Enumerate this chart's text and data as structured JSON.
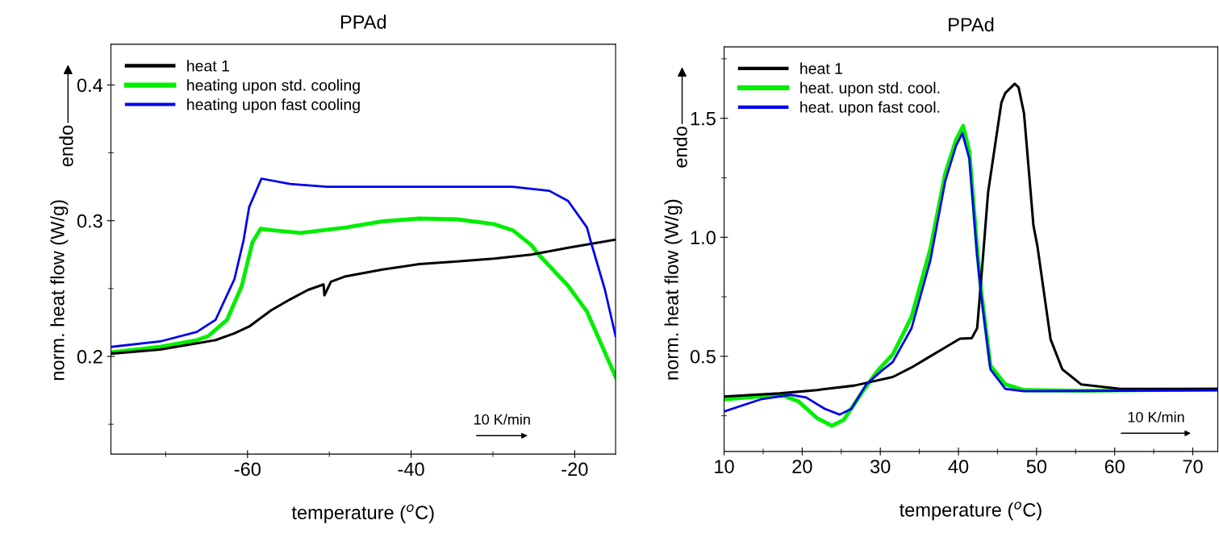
{
  "chart_data": [
    {
      "type": "line",
      "title": "PPAd",
      "xlabel": "temperature ($^{o}$C)",
      "ylabel": "norm. heat flow (W/g)",
      "annotations": [
        "endo",
        "10 K/min"
      ],
      "xlim": [
        -76.7,
        -15
      ],
      "xticks": [
        {
          "value": -70,
          "label": null
        },
        -60,
        {
          "value": -50,
          "label": null
        },
        -40,
        {
          "value": -30,
          "label": null
        },
        -20
      ],
      "ylim": [
        0.128,
        0.43
      ],
      "yticks": [
        {
          "value": 0.15,
          "label": null
        },
        0.2,
        {
          "value": 0.25,
          "label": null
        },
        0.3,
        {
          "value": 0.35,
          "label": null
        },
        0.4
      ],
      "grid": false,
      "legend": "top left",
      "line_style": "solid",
      "marker": "none",
      "series": [
        {
          "name": "heat 1",
          "color": "#000000",
          "x": [
            -76.7,
            -70.7,
            -63.9,
            -61.6,
            -59.8,
            -57.1,
            -54.8,
            -52.6,
            -50.7,
            -50.6,
            -49.8,
            -48,
            -43.5,
            -39,
            -34.4,
            -29.9,
            -25.3,
            -20.8,
            -15
          ],
          "values": [
            0.202,
            0.205,
            0.212,
            0.217,
            0.222,
            0.234,
            0.242,
            0.249,
            0.253,
            0.245,
            0.255,
            0.259,
            0.264,
            0.268,
            0.27,
            0.272,
            0.275,
            0.28,
            0.286
          ]
        },
        {
          "name": "heating upon std. cooling",
          "color": "#00ee00",
          "x": [
            -76.7,
            -70.7,
            -66.2,
            -64.8,
            -62.5,
            -60.7,
            -59.4,
            -58.4,
            -57.1,
            -53.5,
            -48,
            -43.5,
            -39,
            -34.4,
            -29.9,
            -27.6,
            -25.3,
            -24.4,
            -20.8,
            -18.5,
            -15
          ],
          "values": [
            0.203,
            0.207,
            0.212,
            0.215,
            0.227,
            0.252,
            0.284,
            0.294,
            0.293,
            0.291,
            0.295,
            0.2995,
            0.3016,
            0.301,
            0.2975,
            0.293,
            0.282,
            0.275,
            0.252,
            0.233,
            0.185
          ]
        },
        {
          "name": "heating upon fast cooling",
          "color": "#0000ee",
          "x": [
            -76.7,
            -70.7,
            -66.2,
            -63.9,
            -61.6,
            -60.5,
            -59.8,
            -58.3,
            -54.8,
            -50.3,
            -39,
            -27.6,
            -23.1,
            -20.8,
            -18.5,
            -18.1,
            -16.3,
            -15
          ],
          "values": [
            0.207,
            0.211,
            0.218,
            0.227,
            0.257,
            0.285,
            0.31,
            0.331,
            0.327,
            0.325,
            0.325,
            0.325,
            0.322,
            0.3145,
            0.295,
            0.286,
            0.249,
            0.215
          ]
        }
      ]
    },
    {
      "type": "line",
      "title": "PPAd",
      "xlabel": "temperature ($^{o}$C)",
      "ylabel": "norm. heat flow (W/g)",
      "annotations": [
        "endo",
        "10 K/min"
      ],
      "xlim": [
        10,
        73.2
      ],
      "xticks": [
        10,
        {
          "value": 15,
          "label": null
        },
        20,
        {
          "value": 25,
          "label": null
        },
        30,
        {
          "value": 35,
          "label": null
        },
        40,
        {
          "value": 45,
          "label": null
        },
        50,
        {
          "value": 55,
          "label": null
        },
        60,
        {
          "value": 65,
          "label": null
        },
        70
      ],
      "ylim": [
        0.1,
        1.8
      ],
      "yticks": [
        {
          "value": 0.25,
          "label": null
        },
        0.5,
        {
          "value": 0.75,
          "label": null
        },
        {
          "value": 1.0,
          "label": "1.0"
        },
        {
          "value": 1.25,
          "label": null
        },
        1.5,
        {
          "value": 1.75,
          "label": null
        }
      ],
      "grid": false,
      "legend": "top left",
      "line_style": "solid",
      "marker": "none",
      "series": [
        {
          "name": "heat 1",
          "color": "#000000",
          "x": [
            10,
            17.1,
            21.9,
            26.7,
            31.6,
            34,
            36.4,
            38.8,
            40.2,
            41.7,
            42.4,
            43.1,
            43.8,
            45.5,
            46,
            47.2,
            47.7,
            48.4,
            49.6,
            50.1,
            51.8,
            53.3,
            55.7,
            60.5,
            73.2
          ],
          "values": [
            0.331,
            0.344,
            0.358,
            0.377,
            0.413,
            0.453,
            0.5,
            0.547,
            0.574,
            0.576,
            0.618,
            0.9,
            1.19,
            1.566,
            1.606,
            1.645,
            1.63,
            1.52,
            1.05,
            0.965,
            0.571,
            0.445,
            0.382,
            0.364,
            0.363
          ]
        },
        {
          "name": "heat. upon std. cool.",
          "color": "#00ee00",
          "x": [
            10,
            14.7,
            17.6,
            19.5,
            21.9,
            23.8,
            25.3,
            27.7,
            29.6,
            31.6,
            34,
            36.4,
            38.3,
            39.7,
            40.6,
            41.4,
            42.4,
            42.9,
            44.1,
            46,
            48.4,
            55.7,
            73.2
          ],
          "values": [
            0.319,
            0.331,
            0.334,
            0.311,
            0.24,
            0.208,
            0.232,
            0.35,
            0.437,
            0.508,
            0.666,
            0.95,
            1.267,
            1.41,
            1.468,
            1.36,
            0.95,
            0.776,
            0.46,
            0.382,
            0.358,
            0.355,
            0.361
          ]
        },
        {
          "name": "heat. upon fast cool.",
          "color": "#0000ee",
          "x": [
            10,
            14.7,
            18.5,
            20.5,
            22.9,
            24.8,
            26.3,
            28.2,
            30.1,
            31.6,
            34,
            36.4,
            38.3,
            39.7,
            40.5,
            41.4,
            42.4,
            42.9,
            44.1,
            46,
            48.4,
            73.2
          ],
          "values": [
            0.268,
            0.319,
            0.338,
            0.327,
            0.279,
            0.255,
            0.279,
            0.382,
            0.437,
            0.476,
            0.618,
            0.902,
            1.235,
            1.385,
            1.437,
            1.33,
            0.92,
            0.76,
            0.445,
            0.363,
            0.353,
            0.357
          ]
        }
      ]
    }
  ]
}
